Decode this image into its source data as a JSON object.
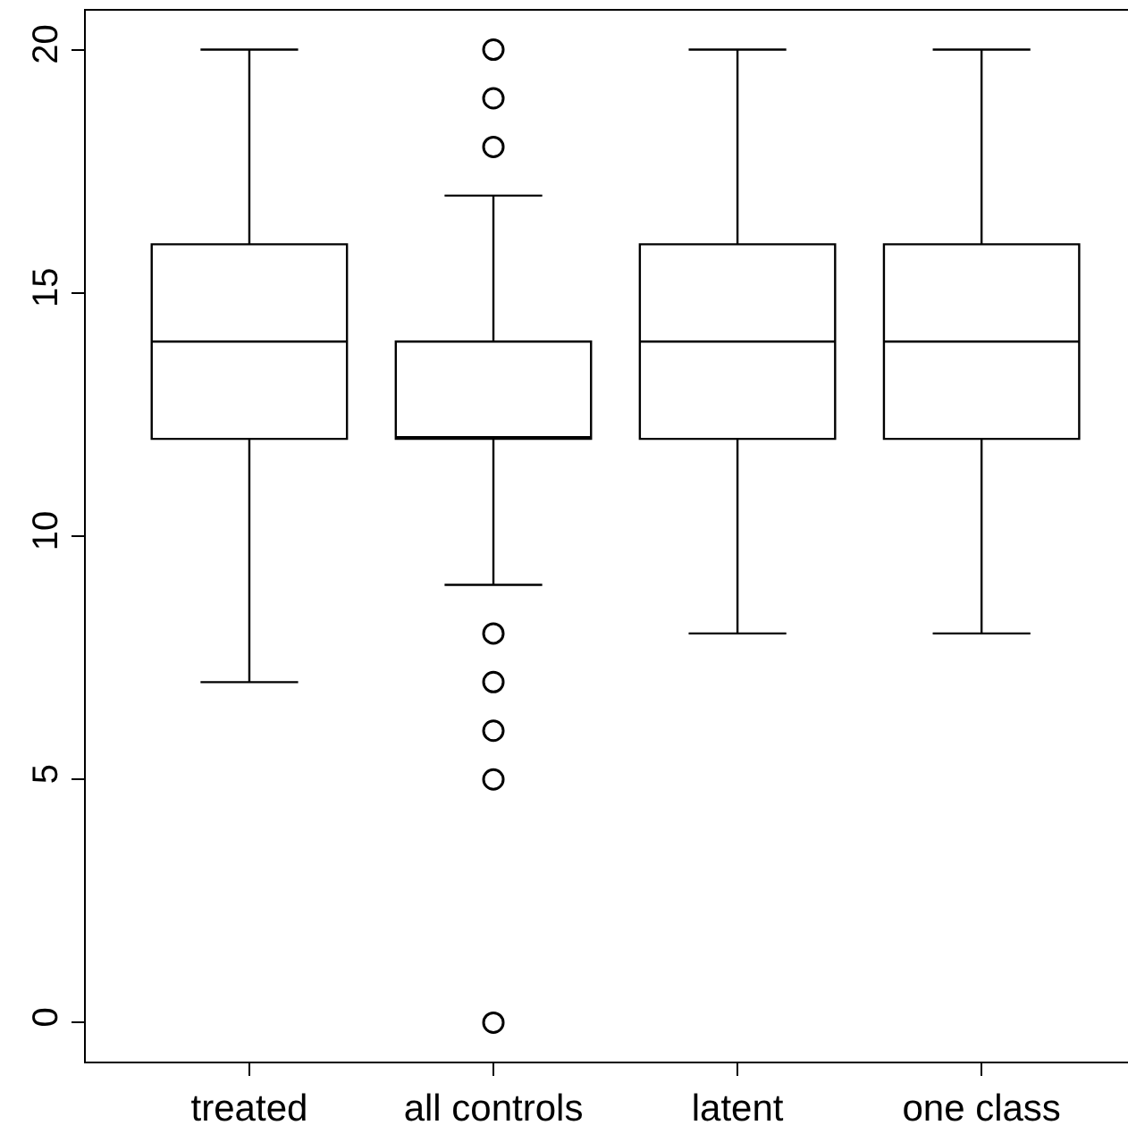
{
  "chart_data": {
    "type": "box",
    "categories": [
      "treated",
      "all controls",
      "latent",
      "one class"
    ],
    "boxes": [
      {
        "low": 7,
        "q1": 12,
        "median": 14,
        "q3": 16,
        "high": 20
      },
      {
        "low": 9,
        "q1": 12,
        "median": 12,
        "q3": 14,
        "high": 17,
        "outliers": [
          20,
          19,
          18,
          8,
          7,
          6,
          5,
          0
        ]
      },
      {
        "low": 8,
        "q1": 12,
        "median": 14,
        "q3": 16,
        "high": 20
      },
      {
        "low": 8,
        "q1": 12,
        "median": 14,
        "q3": 16,
        "high": 20
      }
    ],
    "color": "#000000",
    "ylim": [
      -0.8,
      20.8
    ],
    "yticks": [
      0,
      5,
      10,
      15,
      20
    ]
  }
}
